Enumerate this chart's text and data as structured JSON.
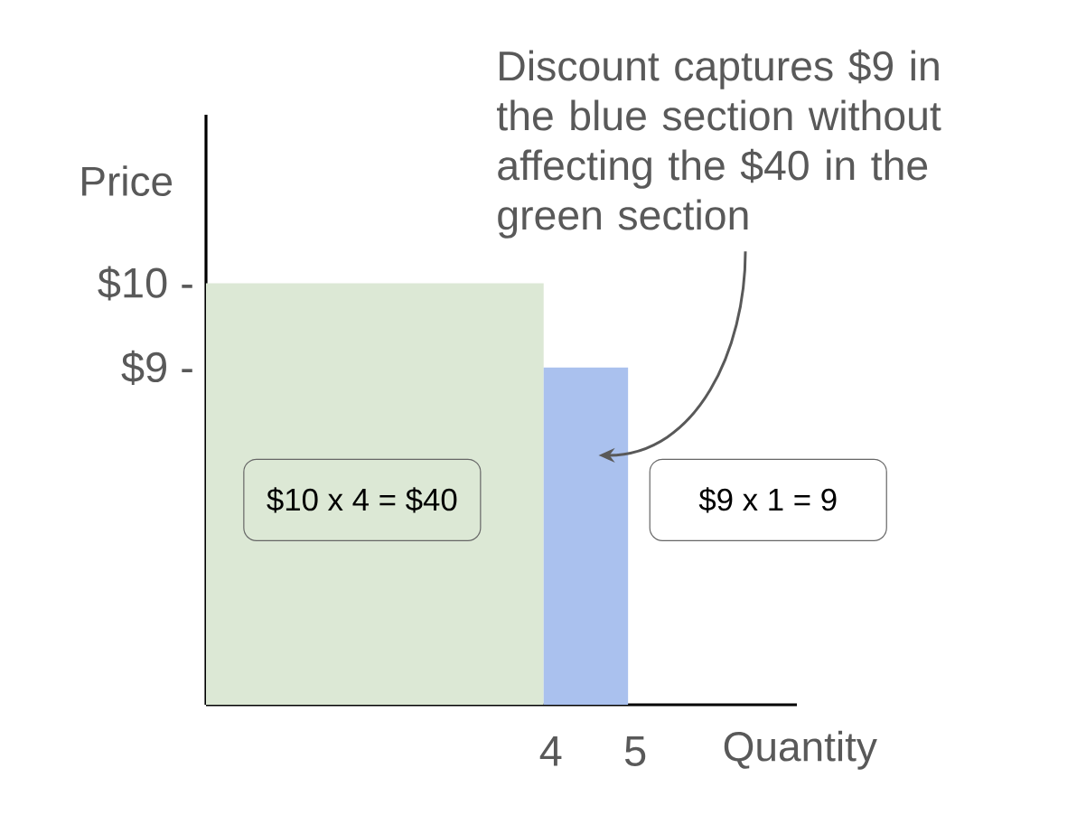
{
  "chart_data": {
    "type": "histogram",
    "bins": [
      0,
      4,
      5
    ],
    "values": [
      10,
      9
    ],
    "colors": [
      "#dce8d5",
      "#aac1ee"
    ],
    "xlabel": "Quantity",
    "ylabel": "Price",
    "xlim": [
      0,
      7
    ],
    "xticks": [
      4,
      5
    ],
    "ylim": [
      5,
      12
    ],
    "yticks": [
      {
        "value": 9,
        "label": "$9 -"
      },
      {
        "value": 10,
        "label": "$10 -"
      }
    ],
    "annotations": [
      "$10 x 4 = $40",
      "$9 x 1 = 9",
      "Discount captures $9 in the blue section without affecting the $40 in the green section"
    ]
  }
}
